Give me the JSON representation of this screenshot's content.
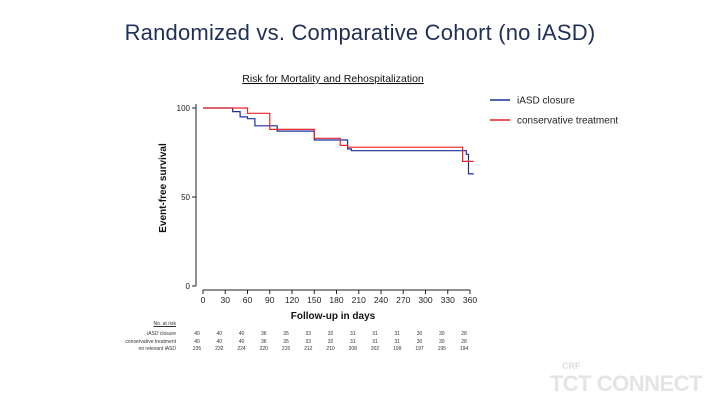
{
  "slide_title": "Randomized vs. Comparative Cohort (no iASD)",
  "chart_data": {
    "type": "line",
    "step": true,
    "title": "Risk for Mortality and Rehospitalization",
    "xlabel": "Follow-up in days",
    "ylabel": "Event-free survival",
    "xlim": [
      0,
      360
    ],
    "ylim": [
      0,
      100
    ],
    "x_ticks": [
      0,
      30,
      60,
      90,
      120,
      150,
      180,
      210,
      240,
      270,
      300,
      330,
      360
    ],
    "y_ticks": [
      0,
      50,
      100
    ],
    "legend_position": "top-right",
    "series": [
      {
        "name": "iASD closure",
        "color": "#1c2f9c",
        "x": [
          0,
          40,
          50,
          60,
          70,
          100,
          150,
          195,
          200,
          355,
          358,
          365
        ],
        "y": [
          100,
          98,
          95,
          94,
          90,
          87,
          82,
          77,
          76,
          74,
          63,
          63
        ]
      },
      {
        "name": "conservative treatment",
        "color": "#e8242c",
        "x": [
          0,
          60,
          90,
          150,
          185,
          195,
          350,
          365
        ],
        "y": [
          100,
          97,
          88,
          83,
          79,
          78,
          70,
          70
        ]
      }
    ],
    "risk_table": {
      "header": "No. at risk",
      "rows": [
        {
          "label": "iASD closure",
          "values": [
            "40",
            "40",
            "40",
            "36",
            "35",
            "33",
            "32",
            "31",
            "31",
            "31",
            "30",
            "30",
            "28"
          ]
        },
        {
          "label": "conservative treatment",
          "values": [
            "40",
            "40",
            "40",
            "36",
            "35",
            "33",
            "32",
            "31",
            "31",
            "31",
            "30",
            "30",
            "28"
          ]
        },
        {
          "label": "no relevant iASD",
          "values": [
            "235",
            "232",
            "224",
            "220",
            "215",
            "212",
            "210",
            "208",
            "202",
            "199",
            "197",
            "195",
            "194"
          ]
        }
      ]
    }
  },
  "logo": {
    "small": "CRF",
    "main": "TCT CONNECT"
  }
}
